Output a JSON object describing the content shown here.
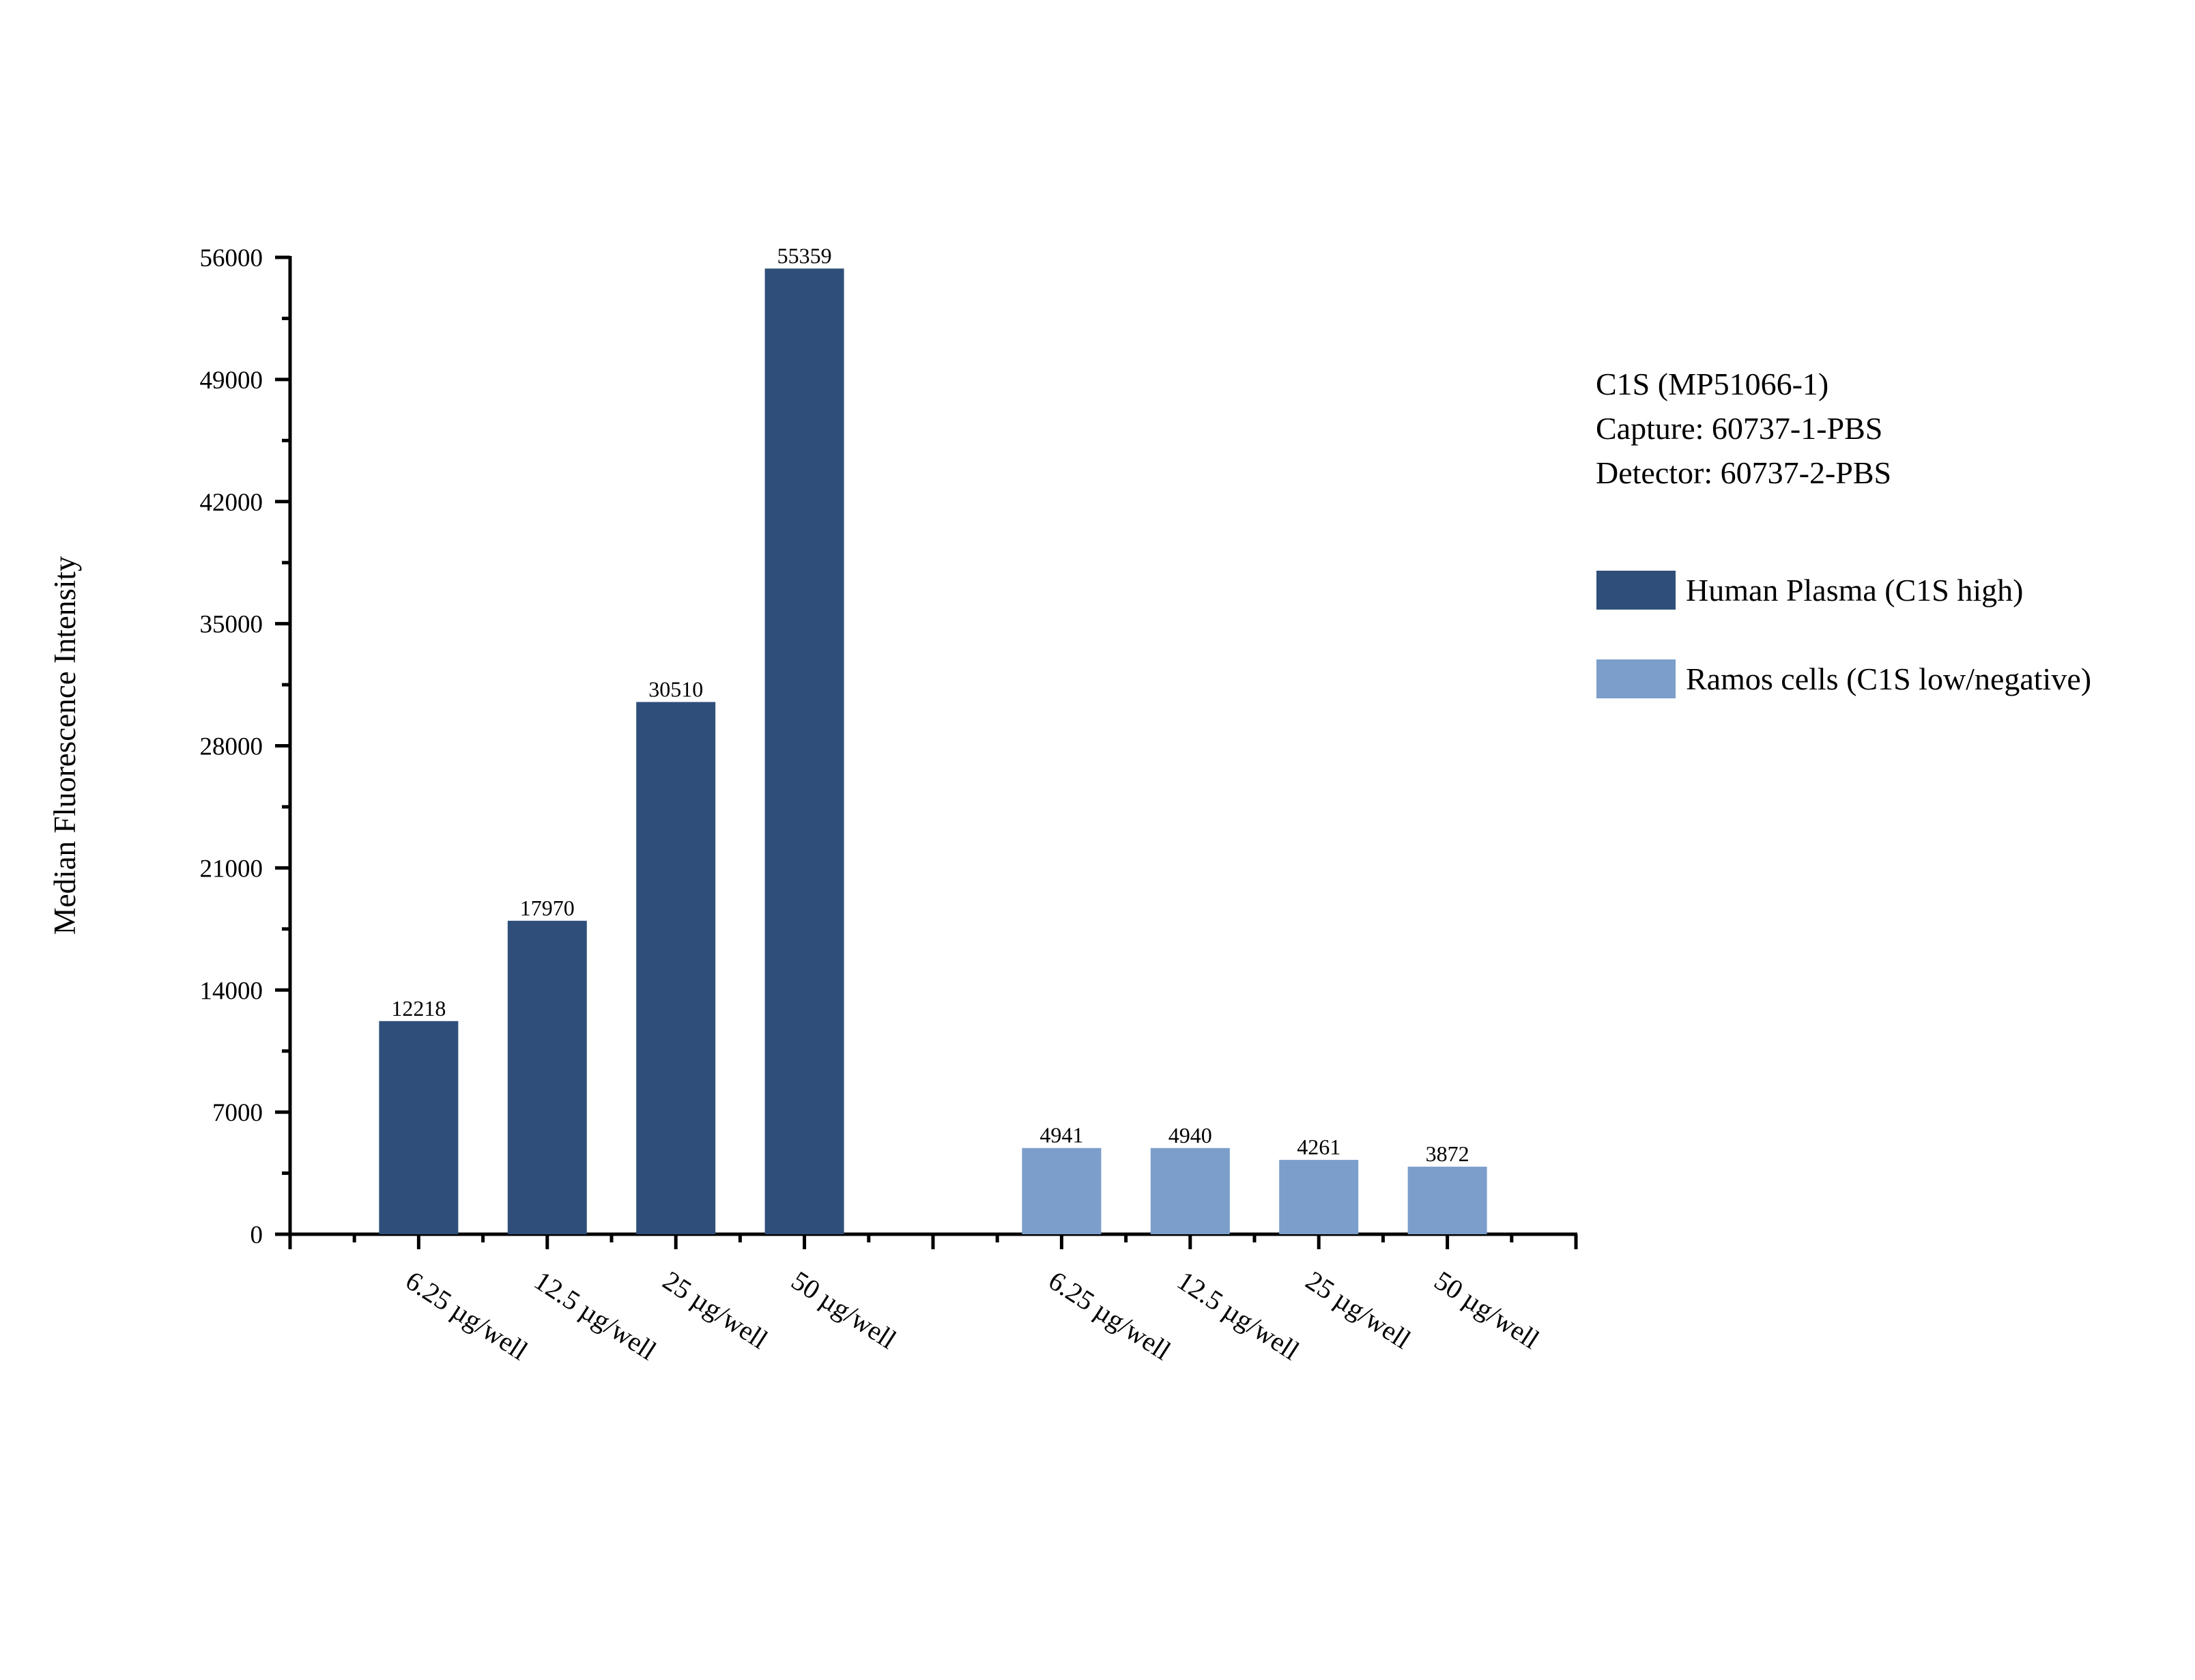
{
  "chart_data": {
    "type": "bar",
    "title": "",
    "xlabel": "",
    "ylabel": "Median Fluorescence Intensity",
    "ylim": [
      0,
      56000
    ],
    "yticks": [
      0,
      7000,
      14000,
      21000,
      28000,
      35000,
      42000,
      49000,
      56000
    ],
    "grid": false,
    "legend_placement": "right",
    "annotation_lines": [
      "C1S (MP51066-1)",
      "Capture: 60737-1-PBS",
      "Detector: 60737-2-PBS"
    ],
    "series": [
      {
        "name": "Human Plasma (C1S high)",
        "color": "#2F4F7A",
        "categories": [
          "6.25 µg/well",
          "12.5 µg/well",
          "25 µg/well",
          "50 µg/well"
        ],
        "values": [
          12218,
          17970,
          30510,
          55359
        ]
      },
      {
        "name": "Ramos cells (C1S low/negative)",
        "color": "#7B9ECB",
        "categories": [
          "6.25 µg/well",
          "12.5 µg/well",
          "25 µg/well",
          "50 µg/well"
        ],
        "values": [
          4941,
          4940,
          4261,
          3872
        ]
      }
    ]
  }
}
